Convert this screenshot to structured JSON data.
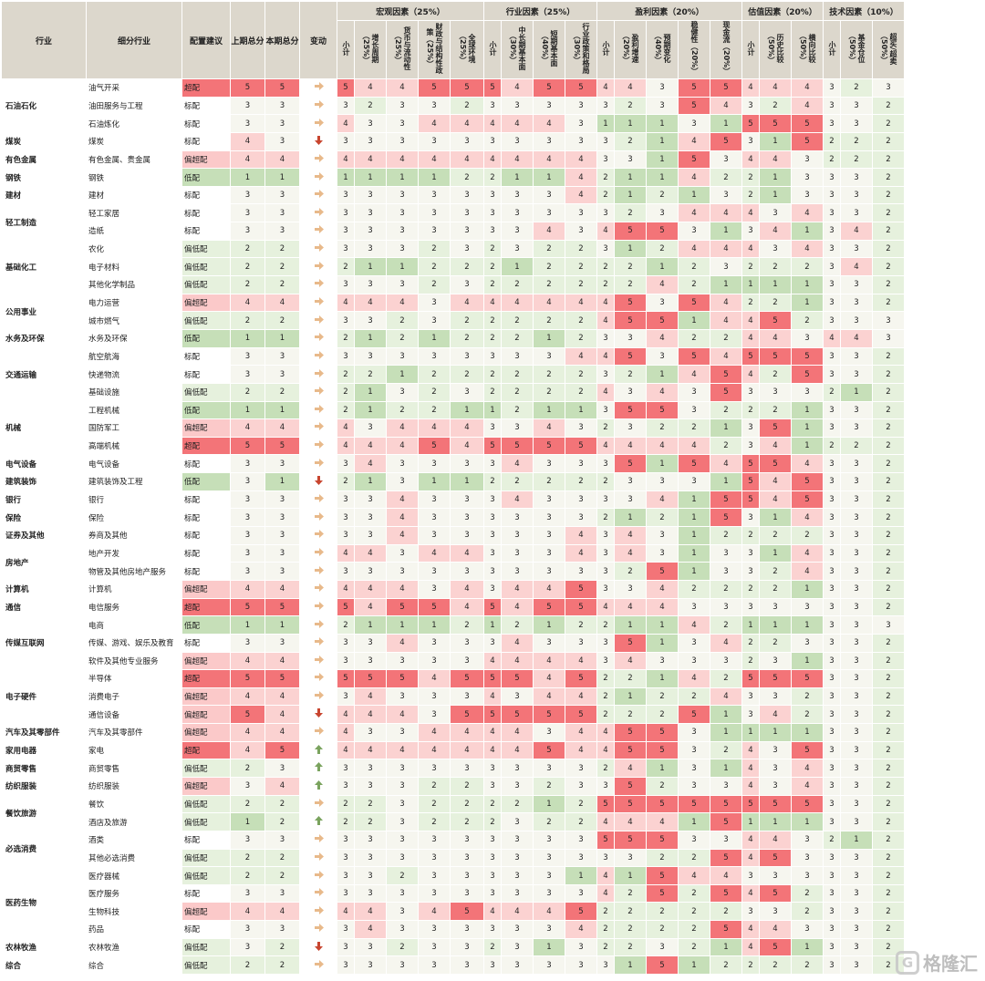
{
  "header": {
    "industry": "行业",
    "sub_industry": "细分行业",
    "recommendation": "配置建议",
    "prev_total": "上期总分",
    "curr_total": "本期总分",
    "change": "变动",
    "groups": [
      "宏观因素（25%）",
      "行业因素（25%）",
      "盈利因素（20%）",
      "估值因素（20%）",
      "技术因素（10%）"
    ],
    "subs": [
      [
        "小计",
        "增长周期（25%）",
        "货币与流动性（25%）",
        "财政与结构性政策（25%）",
        "全球环境（25%）"
      ],
      [
        "小计",
        "中长期基本面（30%）",
        "短期基本面（40%）",
        "行业政策和格局（30%）"
      ],
      [
        "小计",
        "盈利增速（20%）",
        "预期变化（40%）",
        "稳健性（20%）",
        "现金流（20%）"
      ],
      [
        "小计",
        "历史比较（50%）",
        "横向比较（50%）"
      ],
      [
        "小计",
        "基金仓位（50%）",
        "超买/超卖（50%）"
      ]
    ]
  },
  "colors": {
    "rec_overweight": "#f37478",
    "rec_mild_overweight": "#fbc9c9",
    "rec_neutral": "#ffffff",
    "rec_mild_underweight": "#e6f1dd",
    "rec_underweight": "#c6dfb8",
    "arrow_up": "#7aa35e",
    "arrow_down": "#c8452f",
    "arrow_flat": "#e8b98a"
  },
  "watermark": "格隆汇",
  "rows": [
    {
      "ind": "石油石化",
      "span": 3,
      "sub": "油气开采",
      "rec": "超配",
      "p": 5,
      "c": 5,
      "chg": "flat",
      "v": [
        5,
        4,
        4,
        5,
        5,
        5,
        4,
        5,
        5,
        4,
        4,
        3,
        5,
        5,
        4,
        4,
        4,
        3,
        2,
        3
      ]
    },
    {
      "sub": "油田服务与工程",
      "rec": "标配",
      "p": 3,
      "c": 3,
      "chg": "flat",
      "v": [
        3,
        2,
        3,
        3,
        2,
        3,
        3,
        3,
        3,
        3,
        2,
        3,
        5,
        4,
        3,
        2,
        4,
        3,
        3,
        2
      ]
    },
    {
      "sub": "石油炼化",
      "rec": "标配",
      "p": 3,
      "c": 3,
      "chg": "flat",
      "v": [
        4,
        3,
        3,
        4,
        4,
        4,
        4,
        4,
        3,
        1,
        1,
        1,
        3,
        1,
        5,
        5,
        5,
        3,
        3,
        2
      ]
    },
    {
      "ind": "煤炭",
      "span": 1,
      "sub": "煤炭",
      "rec": "标配",
      "p": 4,
      "c": 3,
      "chg": "down",
      "v": [
        3,
        3,
        3,
        3,
        3,
        3,
        3,
        3,
        3,
        3,
        2,
        1,
        4,
        5,
        3,
        1,
        5,
        2,
        2,
        2
      ]
    },
    {
      "ind": "有色金属",
      "span": 1,
      "sub": "有色金属、贵金属",
      "rec": "偏超配",
      "p": 4,
      "c": 4,
      "chg": "flat",
      "v": [
        4,
        4,
        4,
        4,
        4,
        4,
        4,
        4,
        4,
        3,
        3,
        1,
        5,
        3,
        4,
        4,
        3,
        2,
        2,
        2
      ]
    },
    {
      "ind": "钢铁",
      "span": 1,
      "sub": "钢铁",
      "rec": "低配",
      "p": 1,
      "c": 1,
      "chg": "flat",
      "v": [
        1,
        1,
        1,
        1,
        2,
        2,
        1,
        1,
        4,
        2,
        1,
        1,
        4,
        2,
        2,
        1,
        3,
        3,
        3,
        2
      ]
    },
    {
      "ind": "建材",
      "span": 1,
      "sub": "建材",
      "rec": "标配",
      "p": 3,
      "c": 3,
      "chg": "flat",
      "v": [
        3,
        3,
        3,
        3,
        3,
        3,
        3,
        3,
        4,
        2,
        1,
        2,
        1,
        3,
        2,
        1,
        3,
        3,
        3,
        2
      ]
    },
    {
      "ind": "轻工制造",
      "span": 2,
      "sub": "轻工家居",
      "rec": "标配",
      "p": 3,
      "c": 3,
      "chg": "flat",
      "v": [
        3,
        3,
        3,
        3,
        3,
        3,
        3,
        3,
        3,
        3,
        2,
        3,
        4,
        4,
        4,
        3,
        4,
        3,
        3,
        2
      ]
    },
    {
      "sub": "造纸",
      "rec": "标配",
      "p": 3,
      "c": 3,
      "chg": "flat",
      "v": [
        3,
        3,
        3,
        3,
        3,
        3,
        3,
        4,
        3,
        4,
        5,
        5,
        3,
        1,
        3,
        4,
        1,
        3,
        4,
        2
      ]
    },
    {
      "ind": "基础化工",
      "span": 3,
      "sub": "农化",
      "rec": "偏低配",
      "p": 2,
      "c": 2,
      "chg": "flat",
      "v": [
        3,
        3,
        3,
        2,
        3,
        2,
        3,
        2,
        2,
        3,
        1,
        2,
        4,
        4,
        4,
        3,
        4,
        3,
        3,
        2
      ]
    },
    {
      "sub": "电子材料",
      "rec": "偏低配",
      "p": 2,
      "c": 2,
      "chg": "flat",
      "v": [
        2,
        1,
        1,
        2,
        2,
        2,
        1,
        2,
        2,
        2,
        2,
        1,
        2,
        3,
        2,
        2,
        2,
        3,
        4,
        2
      ]
    },
    {
      "sub": "其他化学制品",
      "rec": "偏低配",
      "p": 2,
      "c": 2,
      "chg": "flat",
      "v": [
        3,
        3,
        3,
        2,
        3,
        2,
        2,
        2,
        2,
        2,
        2,
        4,
        2,
        1,
        1,
        1,
        1,
        3,
        3,
        2
      ]
    },
    {
      "ind": "公用事业",
      "span": 2,
      "sub": "电力运营",
      "rec": "偏超配",
      "p": 4,
      "c": 4,
      "chg": "flat",
      "v": [
        4,
        4,
        4,
        3,
        4,
        4,
        4,
        4,
        4,
        4,
        5,
        3,
        5,
        4,
        2,
        2,
        1,
        3,
        3,
        2
      ]
    },
    {
      "sub": "城市燃气",
      "rec": "偏低配",
      "p": 2,
      "c": 2,
      "chg": "flat",
      "v": [
        3,
        3,
        2,
        3,
        2,
        2,
        2,
        2,
        2,
        4,
        5,
        5,
        1,
        4,
        4,
        5,
        2,
        3,
        3,
        3
      ]
    },
    {
      "ind": "水务及环保",
      "span": 1,
      "sub": "水务及环保",
      "rec": "低配",
      "p": 1,
      "c": 1,
      "chg": "flat",
      "v": [
        2,
        1,
        2,
        1,
        2,
        2,
        2,
        1,
        2,
        3,
        3,
        4,
        2,
        2,
        4,
        4,
        3,
        4,
        4,
        3
      ]
    },
    {
      "ind": "交通运输",
      "span": 3,
      "sub": "航空航海",
      "rec": "标配",
      "p": 3,
      "c": 3,
      "chg": "flat",
      "v": [
        3,
        3,
        3,
        3,
        3,
        3,
        3,
        3,
        4,
        4,
        5,
        3,
        5,
        4,
        5,
        5,
        5,
        3,
        3,
        2
      ]
    },
    {
      "sub": "快递物流",
      "rec": "标配",
      "p": 3,
      "c": 3,
      "chg": "flat",
      "v": [
        2,
        2,
        1,
        2,
        2,
        2,
        2,
        2,
        2,
        3,
        2,
        1,
        4,
        5,
        4,
        2,
        5,
        3,
        3,
        2
      ]
    },
    {
      "sub": "基础设施",
      "rec": "偏低配",
      "p": 2,
      "c": 2,
      "chg": "flat",
      "v": [
        2,
        1,
        3,
        2,
        3,
        2,
        2,
        2,
        2,
        4,
        3,
        4,
        3,
        5,
        3,
        3,
        3,
        2,
        1,
        2
      ]
    },
    {
      "ind": "机械",
      "span": 3,
      "sub": "工程机械",
      "rec": "低配",
      "p": 1,
      "c": 1,
      "chg": "flat",
      "v": [
        2,
        1,
        2,
        2,
        1,
        1,
        2,
        1,
        1,
        3,
        5,
        5,
        3,
        2,
        2,
        2,
        1,
        3,
        3,
        2
      ]
    },
    {
      "sub": "国防军工",
      "rec": "偏超配",
      "p": 4,
      "c": 4,
      "chg": "flat",
      "v": [
        4,
        3,
        4,
        4,
        4,
        3,
        3,
        4,
        3,
        2,
        3,
        2,
        2,
        1,
        3,
        5,
        1,
        3,
        3,
        2
      ]
    },
    {
      "sub": "高端机械",
      "rec": "超配",
      "p": 5,
      "c": 5,
      "chg": "flat",
      "v": [
        4,
        4,
        4,
        5,
        4,
        5,
        5,
        5,
        5,
        4,
        4,
        4,
        4,
        2,
        3,
        4,
        1,
        2,
        2,
        2
      ]
    },
    {
      "ind": "电气设备",
      "span": 1,
      "sub": "电气设备",
      "rec": "标配",
      "p": 3,
      "c": 3,
      "chg": "flat",
      "v": [
        3,
        4,
        3,
        3,
        3,
        3,
        4,
        3,
        3,
        3,
        5,
        1,
        5,
        4,
        5,
        5,
        4,
        3,
        3,
        2
      ]
    },
    {
      "ind": "建筑装饰",
      "span": 1,
      "sub": "建筑装饰及工程",
      "rec": "低配",
      "p": 3,
      "c": 1,
      "chg": "down",
      "v": [
        2,
        1,
        3,
        1,
        1,
        2,
        2,
        2,
        2,
        2,
        3,
        3,
        3,
        1,
        5,
        4,
        5,
        3,
        3,
        2
      ]
    },
    {
      "ind": "银行",
      "span": 1,
      "sub": "银行",
      "rec": "标配",
      "p": 3,
      "c": 3,
      "chg": "flat",
      "v": [
        3,
        3,
        4,
        3,
        3,
        3,
        4,
        3,
        3,
        3,
        3,
        4,
        1,
        5,
        5,
        4,
        5,
        3,
        3,
        2
      ]
    },
    {
      "ind": "保险",
      "span": 1,
      "sub": "保险",
      "rec": "标配",
      "p": 3,
      "c": 3,
      "chg": "flat",
      "v": [
        3,
        3,
        4,
        3,
        3,
        3,
        3,
        3,
        3,
        2,
        1,
        2,
        1,
        5,
        3,
        1,
        4,
        3,
        3,
        2
      ]
    },
    {
      "ind": "证券及其他",
      "span": 1,
      "sub": "券商及其他",
      "rec": "标配",
      "p": 3,
      "c": 3,
      "chg": "flat",
      "v": [
        3,
        3,
        4,
        3,
        3,
        3,
        3,
        3,
        4,
        3,
        4,
        3,
        1,
        2,
        2,
        2,
        2,
        3,
        3,
        2
      ]
    },
    {
      "ind": "房地产",
      "span": 2,
      "sub": "地产开发",
      "rec": "标配",
      "p": 3,
      "c": 3,
      "chg": "flat",
      "v": [
        4,
        4,
        3,
        4,
        4,
        3,
        3,
        3,
        4,
        3,
        4,
        3,
        1,
        3,
        3,
        1,
        4,
        3,
        3,
        2
      ]
    },
    {
      "sub": "物管及其他房地产服务",
      "rec": "标配",
      "p": 3,
      "c": 3,
      "chg": "flat",
      "v": [
        3,
        3,
        3,
        3,
        3,
        3,
        3,
        3,
        3,
        3,
        2,
        5,
        1,
        3,
        3,
        2,
        4,
        3,
        3,
        2
      ]
    },
    {
      "ind": "计算机",
      "span": 1,
      "sub": "计算机",
      "rec": "偏超配",
      "p": 4,
      "c": 4,
      "chg": "flat",
      "v": [
        4,
        4,
        4,
        3,
        4,
        3,
        4,
        4,
        5,
        3,
        3,
        4,
        2,
        2,
        2,
        2,
        1,
        3,
        3,
        2
      ]
    },
    {
      "ind": "通信",
      "span": 1,
      "sub": "电信服务",
      "rec": "超配",
      "p": 5,
      "c": 5,
      "chg": "flat",
      "v": [
        5,
        4,
        5,
        5,
        4,
        5,
        4,
        5,
        5,
        4,
        4,
        4,
        3,
        3,
        3,
        3,
        3,
        3,
        3,
        2
      ]
    },
    {
      "ind": "传媒互联网",
      "span": 3,
      "sub": "电商",
      "rec": "低配",
      "p": 1,
      "c": 1,
      "chg": "flat",
      "v": [
        2,
        1,
        1,
        1,
        2,
        1,
        2,
        1,
        2,
        2,
        1,
        1,
        4,
        2,
        1,
        1,
        1,
        3,
        3,
        3
      ]
    },
    {
      "sub": "传媒、游戏、娱乐及教育",
      "rec": "标配",
      "p": 3,
      "c": 3,
      "chg": "flat",
      "v": [
        3,
        3,
        4,
        3,
        3,
        3,
        4,
        3,
        3,
        3,
        5,
        1,
        3,
        4,
        2,
        2,
        3,
        3,
        3,
        2
      ]
    },
    {
      "sub": "软件及其他专业服务",
      "rec": "偏超配",
      "p": 4,
      "c": 4,
      "chg": "flat",
      "v": [
        3,
        3,
        3,
        3,
        3,
        4,
        4,
        4,
        4,
        3,
        4,
        3,
        3,
        3,
        2,
        3,
        1,
        3,
        3,
        2
      ]
    },
    {
      "ind": "电子硬件",
      "span": 3,
      "sub": "半导体",
      "rec": "超配",
      "p": 5,
      "c": 5,
      "chg": "flat",
      "v": [
        5,
        5,
        5,
        4,
        5,
        5,
        5,
        4,
        5,
        2,
        2,
        1,
        4,
        2,
        5,
        5,
        5,
        3,
        3,
        2
      ]
    },
    {
      "sub": "消费电子",
      "rec": "偏超配",
      "p": 4,
      "c": 4,
      "chg": "flat",
      "v": [
        3,
        4,
        3,
        3,
        3,
        4,
        3,
        4,
        4,
        2,
        1,
        2,
        2,
        4,
        3,
        3,
        2,
        3,
        3,
        2
      ]
    },
    {
      "sub": "通信设备",
      "rec": "偏超配",
      "p": 5,
      "c": 4,
      "chg": "down",
      "v": [
        4,
        4,
        4,
        3,
        5,
        5,
        5,
        5,
        5,
        2,
        2,
        2,
        5,
        1,
        3,
        4,
        2,
        3,
        3,
        2
      ]
    },
    {
      "ind": "汽车及其零部件",
      "span": 1,
      "sub": "汽车及其零部件",
      "rec": "偏超配",
      "p": 4,
      "c": 4,
      "chg": "flat",
      "v": [
        4,
        3,
        3,
        4,
        4,
        4,
        4,
        3,
        4,
        4,
        5,
        5,
        3,
        1,
        1,
        1,
        1,
        3,
        3,
        2
      ]
    },
    {
      "ind": "家用电器",
      "span": 1,
      "sub": "家电",
      "rec": "超配",
      "p": 4,
      "c": 5,
      "chg": "up",
      "v": [
        4,
        4,
        4,
        4,
        4,
        4,
        4,
        5,
        4,
        4,
        5,
        5,
        3,
        2,
        4,
        3,
        5,
        3,
        3,
        2
      ]
    },
    {
      "ind": "商贸零售",
      "span": 1,
      "sub": "商贸零售",
      "rec": "偏低配",
      "p": 2,
      "c": 3,
      "chg": "up",
      "v": [
        3,
        3,
        3,
        3,
        3,
        3,
        3,
        3,
        3,
        2,
        4,
        1,
        3,
        1,
        4,
        3,
        4,
        3,
        3,
        2
      ]
    },
    {
      "ind": "纺织服装",
      "span": 1,
      "sub": "纺织服装",
      "rec": "偏超配",
      "p": 3,
      "c": 4,
      "chg": "up",
      "v": [
        3,
        3,
        3,
        2,
        2,
        3,
        3,
        2,
        3,
        3,
        5,
        2,
        3,
        3,
        4,
        3,
        4,
        3,
        3,
        2
      ]
    },
    {
      "ind": "餐饮旅游",
      "span": 2,
      "sub": "餐饮",
      "rec": "偏低配",
      "p": 2,
      "c": 2,
      "chg": "flat",
      "v": [
        2,
        2,
        3,
        2,
        2,
        2,
        2,
        1,
        2,
        5,
        5,
        5,
        5,
        5,
        5,
        5,
        5,
        3,
        3,
        2
      ]
    },
    {
      "sub": "酒店及旅游",
      "rec": "偏低配",
      "p": 1,
      "c": 2,
      "chg": "up",
      "v": [
        2,
        2,
        3,
        2,
        2,
        2,
        3,
        2,
        2,
        4,
        4,
        4,
        1,
        5,
        1,
        1,
        1,
        3,
        3,
        2
      ]
    },
    {
      "ind": "必选消费",
      "span": 2,
      "sub": "酒类",
      "rec": "标配",
      "p": 3,
      "c": 3,
      "chg": "flat",
      "v": [
        3,
        3,
        3,
        3,
        3,
        3,
        3,
        3,
        3,
        5,
        5,
        5,
        3,
        3,
        4,
        4,
        3,
        2,
        1,
        2
      ]
    },
    {
      "sub": "其他必选消费",
      "rec": "偏低配",
      "p": 2,
      "c": 2,
      "chg": "flat",
      "v": [
        3,
        3,
        3,
        3,
        3,
        3,
        3,
        3,
        3,
        3,
        3,
        2,
        2,
        5,
        4,
        5,
        3,
        3,
        3,
        2
      ]
    },
    {
      "ind": "医药生物",
      "span": 4,
      "sub": "医疗器械",
      "rec": "偏低配",
      "p": 2,
      "c": 2,
      "chg": "flat",
      "v": [
        3,
        3,
        2,
        3,
        3,
        3,
        3,
        3,
        1,
        4,
        1,
        5,
        4,
        4,
        3,
        3,
        3,
        3,
        3,
        2
      ]
    },
    {
      "sub": "医疗服务",
      "rec": "标配",
      "p": 3,
      "c": 3,
      "chg": "flat",
      "v": [
        3,
        3,
        3,
        3,
        3,
        3,
        3,
        3,
        3,
        4,
        2,
        5,
        2,
        5,
        4,
        5,
        2,
        3,
        3,
        2
      ]
    },
    {
      "sub": "生物科技",
      "rec": "偏超配",
      "p": 4,
      "c": 4,
      "chg": "flat",
      "v": [
        4,
        4,
        3,
        4,
        5,
        4,
        4,
        4,
        5,
        2,
        2,
        2,
        2,
        2,
        3,
        3,
        2,
        3,
        3,
        2
      ]
    },
    {
      "sub": "药品",
      "rec": "标配",
      "p": 3,
      "c": 3,
      "chg": "flat",
      "v": [
        3,
        4,
        3,
        3,
        3,
        3,
        3,
        3,
        4,
        2,
        2,
        2,
        2,
        5,
        4,
        4,
        3,
        3,
        3,
        2
      ]
    },
    {
      "ind": "农林牧渔",
      "span": 1,
      "sub": "农林牧渔",
      "rec": "偏低配",
      "p": 3,
      "c": 2,
      "chg": "down",
      "v": [
        3,
        3,
        2,
        3,
        3,
        2,
        3,
        1,
        3,
        2,
        2,
        3,
        2,
        1,
        4,
        5,
        1,
        3,
        3,
        2
      ]
    },
    {
      "ind": "综合",
      "span": 1,
      "sub": "综合",
      "rec": "偏低配",
      "p": 2,
      "c": 2,
      "chg": "flat",
      "v": [
        3,
        3,
        3,
        3,
        3,
        3,
        3,
        3,
        3,
        3,
        1,
        5,
        1,
        2,
        2,
        2,
        2,
        3,
        3,
        2
      ]
    }
  ]
}
